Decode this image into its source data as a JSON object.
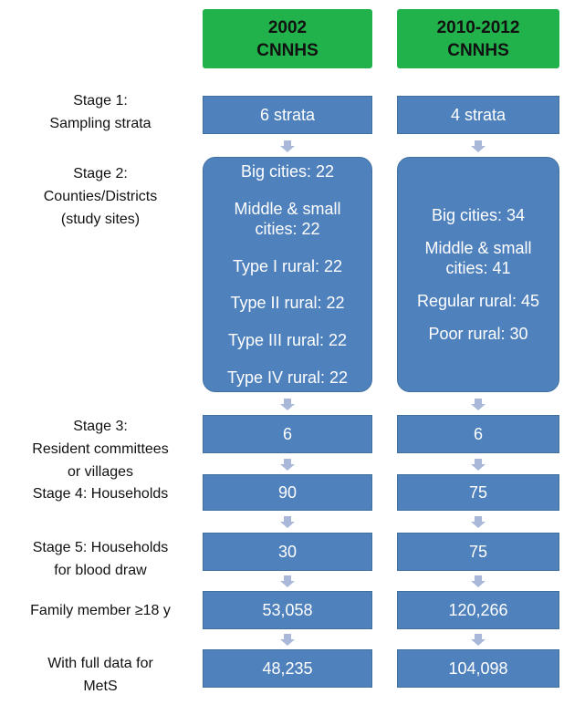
{
  "columns": [
    {
      "year": "2002",
      "survey": "CNNHS"
    },
    {
      "year": "2010-2012",
      "survey": "CNNHS"
    }
  ],
  "stages": [
    {
      "label": [
        "Stage 1:",
        "Sampling strata"
      ],
      "values": [
        "6 strata",
        "4 strata"
      ]
    },
    {
      "label": [
        "Stage 2:",
        "Counties/Districts",
        "(study sites)"
      ],
      "values": [
        [
          "Big cities: 22",
          "Middle & small cities: 22",
          "Type I rural: 22",
          "Type II rural: 22",
          "Type III rural: 22",
          "Type  IV rural: 22"
        ],
        [
          "Big cities: 34",
          "Middle & small cities: 41",
          "Regular rural: 45",
          "Poor rural: 30"
        ]
      ]
    },
    {
      "label": [
        "Stage 3:",
        "Resident committees",
        "or villages"
      ],
      "values": [
        "6",
        "6"
      ]
    },
    {
      "label": [
        "Stage 4: Households"
      ],
      "values": [
        "90",
        "75"
      ]
    },
    {
      "label": [
        "Stage 5: Households",
        "for blood draw"
      ],
      "values": [
        "30",
        "75"
      ]
    },
    {
      "label": [
        "Family member ≥18 y"
      ],
      "values": [
        "53,058",
        "120,266"
      ]
    },
    {
      "label": [
        "With full data for",
        "MetS"
      ],
      "values": [
        "48,235",
        "104,098"
      ]
    }
  ]
}
